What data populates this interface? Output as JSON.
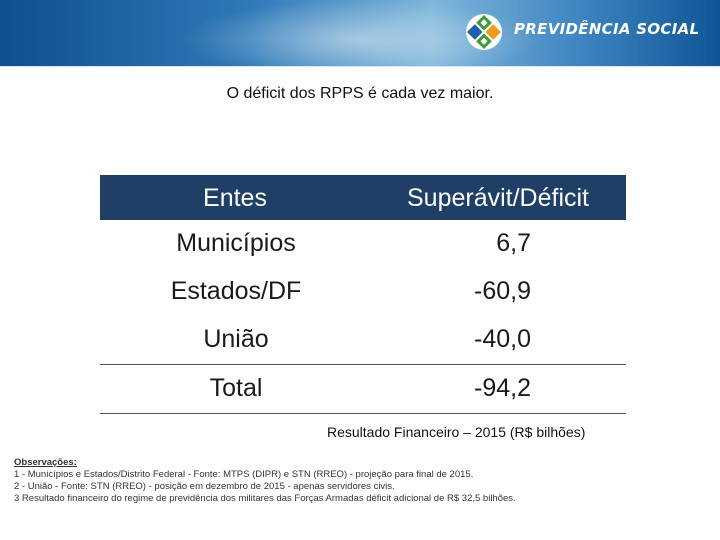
{
  "header": {
    "brand_name": "PREVIDÊNCIA SOCIAL",
    "colors": {
      "band_dark": "#0e4f8f",
      "band_light": "#7fb6da",
      "logo_green": "#3d9b3a",
      "logo_orange": "#f29a1f"
    }
  },
  "slide": {
    "title": "O déficit dos RPPS é cada vez maior."
  },
  "table": {
    "columns": [
      "Entes",
      "Superávit/Déficit"
    ],
    "rows": [
      {
        "ente": "Municípios",
        "valor": "6,7"
      },
      {
        "ente": "Estados/DF",
        "valor": "-60,9"
      },
      {
        "ente": "União",
        "valor": "-40,0"
      }
    ],
    "total": {
      "ente": "Total",
      "valor": "-94,2"
    },
    "header_color": "#1f3f66"
  },
  "caption": "Resultado Financeiro – 2015 (R$ bilhões)",
  "notes": {
    "heading": "Observações:",
    "lines": [
      "1 - Municípios e Estados/Distrito Federal - Fonte: MTPS (DIPR) e STN (RREO) - projeção para final de 2015.",
      "2 - União - Fonte: STN (RREO) - posição em dezembro de 2015 - apenas servidores civis.",
      "3   Resultado financeiro do regime de previdência dos militares das Forças Armadas   déficit adicional de R$ 32,5 bilhões."
    ]
  }
}
